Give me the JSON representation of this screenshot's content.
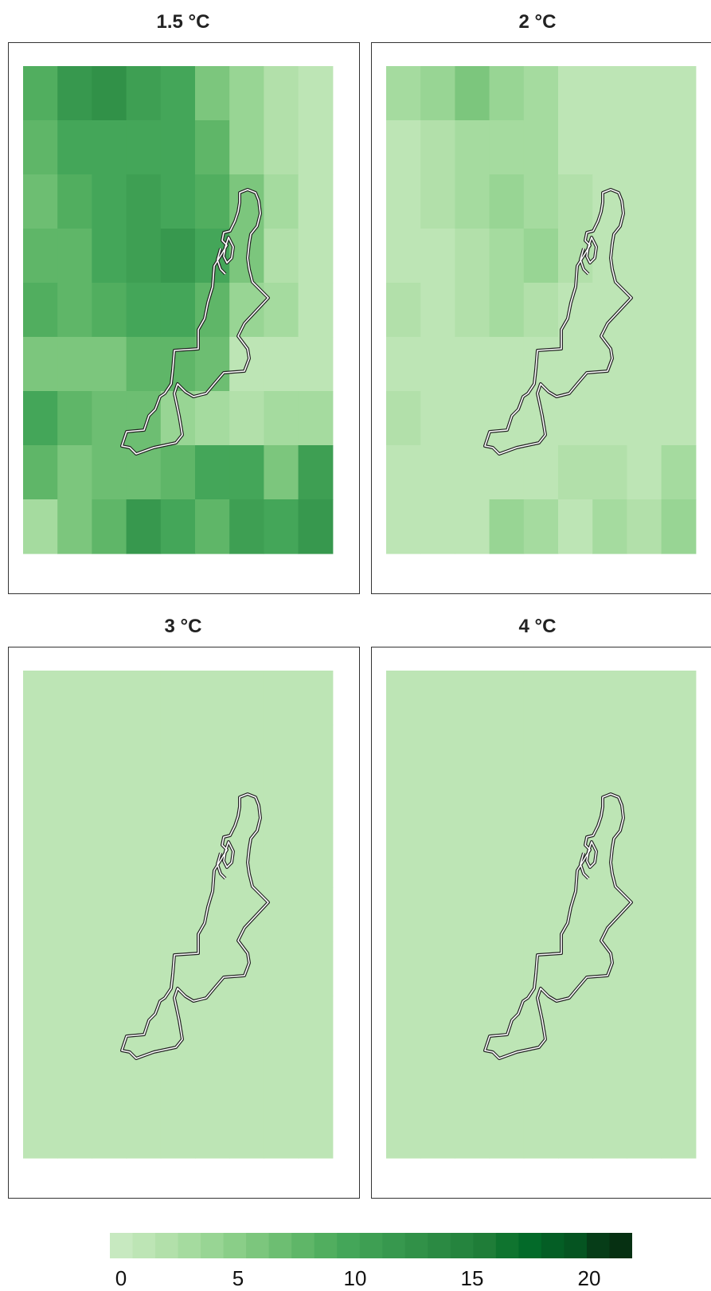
{
  "panels": [
    {
      "title": "1.5 °C",
      "grid": [
        [
          9,
          12,
          13,
          11,
          10,
          6,
          4,
          2,
          1
        ],
        [
          8,
          10,
          10,
          10,
          10,
          8,
          4,
          2,
          1
        ],
        [
          7,
          9,
          10,
          11,
          10,
          9,
          6,
          3,
          1
        ],
        [
          8,
          8,
          10,
          11,
          12,
          10,
          6,
          2,
          1
        ],
        [
          9,
          8,
          9,
          10,
          10,
          8,
          4,
          3,
          1
        ],
        [
          6,
          6,
          6,
          8,
          8,
          7,
          1,
          1,
          1
        ],
        [
          10,
          8,
          7,
          7,
          4,
          3,
          2,
          3,
          3
        ],
        [
          8,
          6,
          7,
          7,
          8,
          10,
          10,
          6,
          11
        ],
        [
          3,
          6,
          8,
          12,
          10,
          8,
          11,
          10,
          12
        ]
      ]
    },
    {
      "title": "2 °C",
      "grid": [
        [
          3,
          4,
          6,
          4,
          3,
          1,
          1,
          1,
          1
        ],
        [
          1,
          2,
          3,
          3,
          3,
          1,
          1,
          1,
          1
        ],
        [
          1,
          2,
          3,
          4,
          3,
          2,
          1,
          1,
          1
        ],
        [
          1,
          1,
          2,
          3,
          4,
          2,
          1,
          1,
          1
        ],
        [
          2,
          1,
          2,
          3,
          2,
          1,
          1,
          1,
          1
        ],
        [
          1,
          1,
          1,
          1,
          1,
          1,
          1,
          1,
          1
        ],
        [
          2,
          1,
          1,
          1,
          1,
          1,
          1,
          1,
          1
        ],
        [
          1,
          1,
          1,
          1,
          1,
          2,
          2,
          1,
          3
        ],
        [
          1,
          1,
          1,
          4,
          3,
          1,
          3,
          2,
          4
        ]
      ]
    },
    {
      "title": "3 °C",
      "grid": [
        [
          1,
          1,
          1,
          1,
          1,
          1,
          1,
          1,
          1
        ],
        [
          1,
          1,
          1,
          1,
          1,
          1,
          1,
          1,
          1
        ],
        [
          1,
          1,
          1,
          1,
          1,
          1,
          1,
          1,
          1
        ],
        [
          1,
          1,
          1,
          1,
          1,
          1,
          1,
          1,
          1
        ],
        [
          1,
          1,
          1,
          1,
          1,
          1,
          1,
          1,
          1
        ],
        [
          1,
          1,
          1,
          1,
          1,
          1,
          1,
          1,
          1
        ],
        [
          1,
          1,
          1,
          1,
          1,
          1,
          1,
          1,
          1
        ],
        [
          1,
          1,
          1,
          1,
          1,
          1,
          1,
          1,
          1
        ],
        [
          1,
          1,
          1,
          1,
          1,
          1,
          1,
          1,
          1
        ]
      ]
    },
    {
      "title": "4 °C",
      "grid": [
        [
          1,
          1,
          1,
          1,
          1,
          1,
          1,
          1,
          1
        ],
        [
          1,
          1,
          1,
          1,
          1,
          1,
          1,
          1,
          1
        ],
        [
          1,
          1,
          1,
          1,
          1,
          1,
          1,
          1,
          1
        ],
        [
          1,
          1,
          1,
          1,
          1,
          1,
          1,
          1,
          1
        ],
        [
          1,
          1,
          1,
          1,
          1,
          1,
          1,
          1,
          1
        ],
        [
          1,
          1,
          1,
          1,
          1,
          1,
          1,
          1,
          1
        ],
        [
          1,
          1,
          1,
          1,
          1,
          1,
          1,
          1,
          1
        ],
        [
          1,
          1,
          1,
          1,
          1,
          1,
          1,
          1,
          1
        ],
        [
          1,
          1,
          1,
          1,
          1,
          1,
          1,
          1,
          1
        ]
      ]
    }
  ],
  "legend": {
    "ticks": [
      "0",
      "5",
      "10",
      "15",
      "20"
    ],
    "colors": [
      "#c7e9c0",
      "#bde5b5",
      "#b2e0aa",
      "#a5db9f",
      "#98d594",
      "#8ace88",
      "#7cc67d",
      "#6dbe72",
      "#5fb668",
      "#51ae5f",
      "#44a659",
      "#3e9f53",
      "#37984e",
      "#319148",
      "#2b8a43",
      "#25843e",
      "#1f7d38",
      "#0f742f",
      "#036a29",
      "#045e25",
      "#055421",
      "#063d18",
      "#063012"
    ]
  }
}
